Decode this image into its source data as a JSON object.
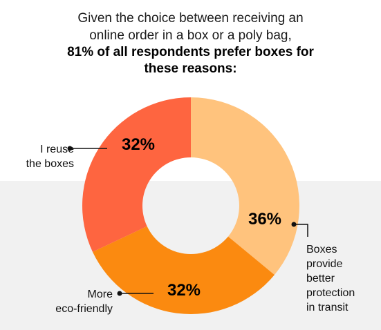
{
  "title": {
    "line1": "Given the choice between receiving an",
    "line2": "online order in a box or a poly bag,",
    "line3": "81% of all respondents prefer boxes for",
    "line4": "these reasons:"
  },
  "colors": {
    "protection": "#ffc37d",
    "eco": "#fb8a10",
    "reuse": "#fe6540",
    "band": "#f1f1f1"
  },
  "chart_data": {
    "type": "pie",
    "donut": true,
    "slices": [
      {
        "label": "Boxes provide better protection in transit",
        "value": 36,
        "display": "36%"
      },
      {
        "label": "More eco-friendly",
        "value": 32,
        "display": "32%"
      },
      {
        "label": "I reuse the boxes",
        "value": 32,
        "display": "32%"
      }
    ]
  },
  "labels": {
    "reuse": "I reuse\nthe boxes",
    "eco": "More\neco-friendly",
    "protection": "Boxes\nprovide\nbetter\nprotection\nin transit"
  }
}
